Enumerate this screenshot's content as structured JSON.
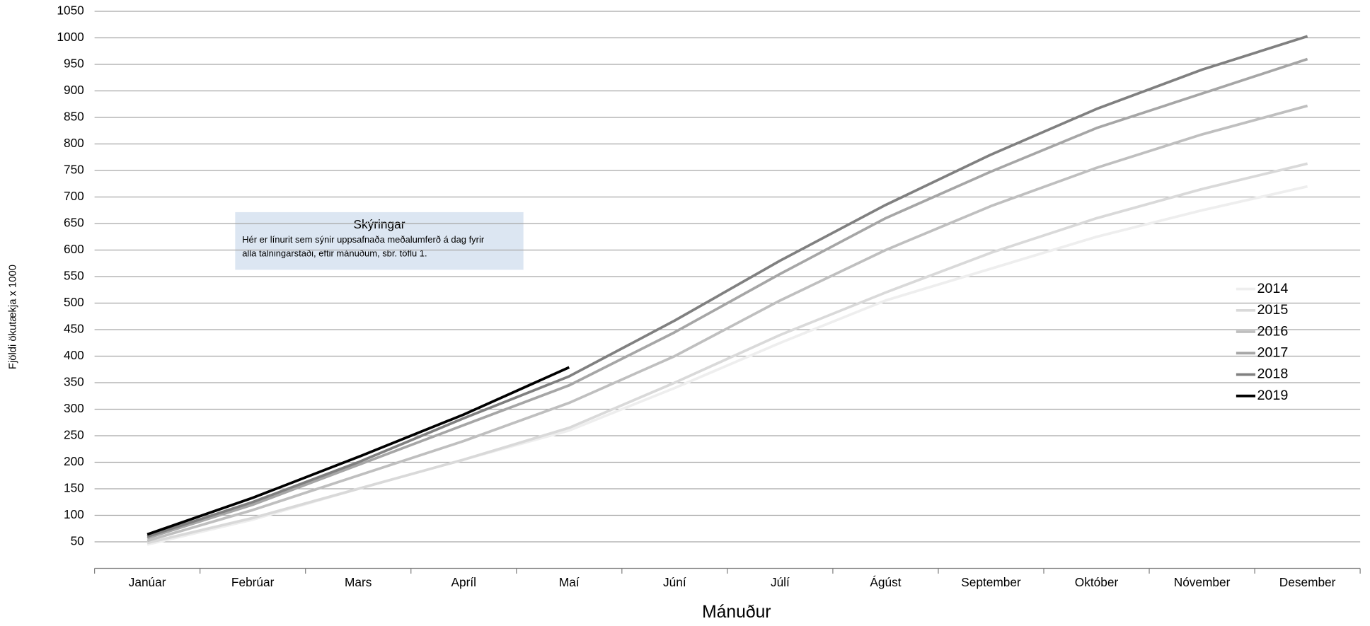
{
  "chart_data": {
    "type": "line",
    "ylabel": "Fjöldi ökutækja x 1000",
    "xlabel": "Mánuður",
    "categories": [
      "Janúar",
      "Febrúar",
      "Mars",
      "Apríl",
      "Maí",
      "Júní",
      "Júlí",
      "Ágúst",
      "September",
      "Október",
      "Nóvember",
      "Desember"
    ],
    "ylim": [
      0,
      1050
    ],
    "yticks": [
      50,
      100,
      150,
      200,
      250,
      300,
      350,
      400,
      450,
      500,
      550,
      600,
      650,
      700,
      750,
      800,
      850,
      900,
      950,
      1000,
      1050
    ],
    "grid": true,
    "legend": "right",
    "series": [
      {
        "name": "2014",
        "color": "#eeeeee",
        "values": [
          45,
          92,
          150,
          205,
          260,
          340,
          425,
          505,
          565,
          625,
          675,
          720
        ]
      },
      {
        "name": "2015",
        "color": "#d9d9d9",
        "values": [
          48,
          95,
          150,
          205,
          265,
          350,
          440,
          520,
          595,
          660,
          715,
          763
        ]
      },
      {
        "name": "2016",
        "color": "#bfbfbf",
        "values": [
          52,
          110,
          175,
          240,
          312,
          400,
          505,
          600,
          683,
          755,
          818,
          872
        ]
      },
      {
        "name": "2017",
        "color": "#a6a6a6",
        "values": [
          57,
          120,
          195,
          270,
          345,
          445,
          555,
          660,
          748,
          830,
          895,
          960
        ]
      },
      {
        "name": "2018",
        "color": "#808080",
        "values": [
          60,
          125,
          200,
          283,
          362,
          467,
          580,
          685,
          780,
          866,
          940,
          1003
        ]
      },
      {
        "name": "2019",
        "color": "#000000",
        "values": [
          64,
          133,
          210,
          290,
          379,
          null,
          null,
          null,
          null,
          null,
          null,
          null
        ]
      }
    ],
    "annotation": {
      "title": "Skýringar",
      "lines": [
        "Hér er línurit sem sýnir uppsafnaða meðalumferð á dag fyrir",
        "alla talningarstaði, eftir mánuðum, sbr. töflu 1."
      ]
    }
  }
}
